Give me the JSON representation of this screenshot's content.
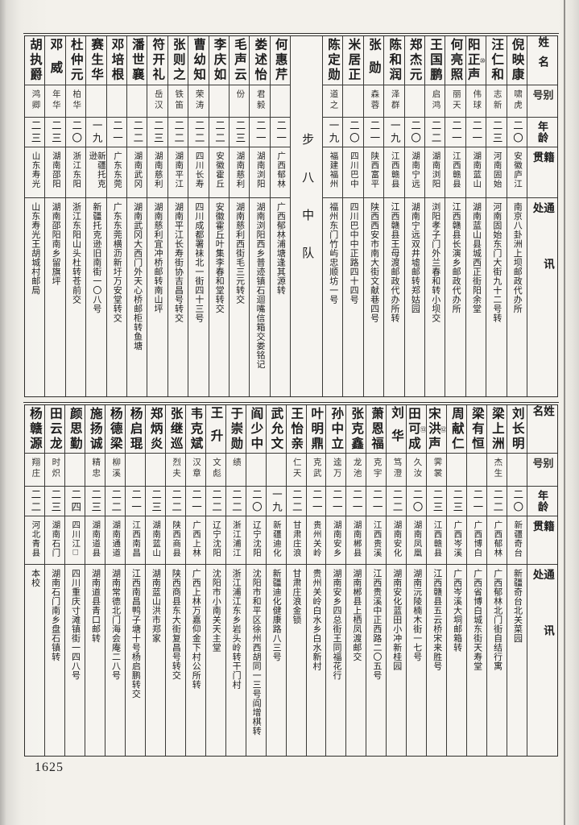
{
  "page": {
    "number": "1625"
  },
  "headers": {
    "name": "姓名",
    "alias": "别号",
    "age": "年龄",
    "native": "籍贯",
    "address": "通讯处"
  },
  "colors": {
    "paper": "#f3f1eb",
    "rule": "#2e2d2b",
    "ink": "#1c1c1c"
  },
  "tables": [
    {
      "separator": "步八中队",
      "separator_after": 10,
      "entries": [
        {
          "name": "倪映康",
          "note": "",
          "alias": "啸虎",
          "age": "二〇",
          "native": "安徽庐江",
          "address": "南京八卦洲上坝邮政代办所"
        },
        {
          "name": "汪仁和",
          "note": "",
          "alias": "志新",
          "age": "二三",
          "native": "河南固始",
          "address": "河南固始东门大街九十二号转"
        },
        {
          "name": "阳正声",
          "note": "⑩",
          "alias": "伟球",
          "age": "二一",
          "native": "湖南蓝山",
          "address": "湖南蓝山县城西正街阳余堂"
        },
        {
          "name": "何亮照",
          "note": "",
          "alias": "丽天",
          "age": "二一",
          "native": "江西赣县",
          "address": "江西赣县长演乡邮政代办所"
        },
        {
          "name": "王国鹏",
          "note": "",
          "alias": "启鸿",
          "age": "二二",
          "native": "湖南浏阳",
          "address": "浏阳孝子门外兰春和转小坝交"
        },
        {
          "name": "郑杰元",
          "note": "",
          "alias": "",
          "age": "二〇",
          "native": "湖南宁远",
          "address": "湖南宁远双井墟邮转郑姑园"
        },
        {
          "name": "陈和润",
          "note": "",
          "alias": "泽群",
          "age": "一九",
          "native": "江西赣县",
          "address": "江西赣县王母渡邮政代办所转"
        },
        {
          "name": "张勋",
          "note": "",
          "alias": "森蓉",
          "age": "二一",
          "native": "陕西富平",
          "address": "陕西西安市南大街文献巷四号"
        },
        {
          "name": "米居正",
          "note": "",
          "alias": "",
          "age": "二〇",
          "native": "四川巴中",
          "address": "四川巴中中正路四十四号"
        },
        {
          "name": "陈定勋",
          "note": "",
          "alias": "道之",
          "age": "一九",
          "native": "福建福州",
          "address": "福州东门竹屿忠顺坊一号"
        },
        {
          "name": "何惠芹",
          "note": "",
          "alias": "",
          "age": "二一",
          "native": "广西郁林",
          "address": "广西郁林浦塘逢其源转"
        },
        {
          "name": "娄述怡",
          "note": "",
          "alias": "君毅",
          "age": "二一",
          "native": "湖南浏阳",
          "address": "湖南浏阳西乡普迹镇石迴嘴信箱交娄铭记"
        },
        {
          "name": "毛声云",
          "note": "",
          "alias": "份",
          "age": "二三",
          "native": "湖南慈利",
          "address": "湖南慈利西街毛三元转交"
        },
        {
          "name": "李庆如",
          "note": "",
          "alias": "",
          "age": "二二",
          "native": "安徽霍丘",
          "address": "安徽霍丘叶集李春和堂转交"
        },
        {
          "name": "曹幼知",
          "note": "",
          "alias": "荣涛",
          "age": "二二",
          "native": "四川长寿",
          "address": "四川成都署袜北一街四十三号"
        },
        {
          "name": "张则之",
          "note": "",
          "alias": "铁笛",
          "age": "二二",
          "native": "湖南平江",
          "address": "湖南平江长寿街协吉昌号转交"
        },
        {
          "name": "符开礼",
          "note": "",
          "alias": "岳汉",
          "age": "二三",
          "native": "湖南慈利",
          "address": "湖南慈利宜冲桥邮转南山坪"
        },
        {
          "name": "潘世襄",
          "note": "",
          "alias": "",
          "age": "二二",
          "native": "湖南武冈",
          "address": "湖南武冈大西门外天心桥邮柜转鱼塘"
        },
        {
          "name": "邓培根",
          "note": "",
          "alias": "",
          "age": "二一",
          "native": "广东东莞",
          "address": "广东东莞横沥新圩万安堂转交"
        },
        {
          "name": "赛生华",
          "note": "",
          "alias": "",
          "age": "一九",
          "native": "新疆托克逊",
          "address": "新疆托克逊旧南街一〇八号"
        },
        {
          "name": "杜仲元",
          "note": "",
          "alias": "柏华",
          "age": "二〇",
          "native": "浙江东阳",
          "address": "浙江东阳山头杜转苍前交"
        },
        {
          "name": "邓威",
          "note": "",
          "alias": "年华",
          "age": "二三",
          "native": "湖南邵阳",
          "address": "湖南邵阳南乡留旗坪"
        },
        {
          "name": "胡执爵",
          "note": "",
          "alias": "鸿卿",
          "age": "二三",
          "native": "山东寿光",
          "address": "山东寿光王胡城村邮局"
        }
      ]
    },
    {
      "separator": "",
      "separator_after": -1,
      "entries": [
        {
          "name": "刘长明",
          "note": "",
          "alias": "",
          "age": "二〇",
          "native": "新疆奇台",
          "address": "新疆奇台北关菜园"
        },
        {
          "name": "梁上洲",
          "note": "",
          "alias": "杰生",
          "age": "二二",
          "native": "广西郁林",
          "address": "广西郁林北门街自结行寓"
        },
        {
          "name": "梁有恒",
          "note": "",
          "alias": "",
          "age": "二一",
          "native": "广西博白",
          "address": "广西省博白城东街天寿堂"
        },
        {
          "name": "周献仁",
          "note": "",
          "alias": "",
          "age": "二三",
          "native": "广西岑溪",
          "address": "广西岑溪大垌邮箱转"
        },
        {
          "name": "宋洪声",
          "note": "⑫",
          "alias": "霁裳",
          "age": "二三",
          "native": "江西赣县",
          "address": "江西赣县五云桥宋来胜号"
        },
        {
          "name": "田可成",
          "note": "⑬",
          "alias": "久汝",
          "age": "二〇",
          "native": "湖南凤凰",
          "address": "湖南沅陵楠木街一七号"
        },
        {
          "name": "刘华",
          "note": "",
          "alias": "笃澄",
          "age": "二二",
          "native": "湖南安化",
          "address": "湖南安化蓝田小冲新桂园"
        },
        {
          "name": "萧恩福",
          "note": "",
          "alias": "克宇",
          "age": "二一",
          "native": "江西贵溪",
          "address": "江西贵溪中正西路二〇五号"
        },
        {
          "name": "张克鑫",
          "note": "",
          "alias": "龙池",
          "age": "二一",
          "native": "湖南郴县",
          "address": "湖南郴县上栖凤渡邮交"
        },
        {
          "name": "孙中立",
          "note": "",
          "alias": "逵万",
          "age": "二一",
          "native": "湖南安乡",
          "address": "湖南安乡四总街王同福花行"
        },
        {
          "name": "叶明鼎",
          "note": "",
          "alias": "克武",
          "age": "二一",
          "native": "贵州关岭",
          "address": "贵州关岭白水乡白水新村"
        },
        {
          "name": "王怡亲",
          "note": "",
          "alias": "仁天",
          "age": "二二",
          "native": "甘肃庄浪",
          "address": "甘肃庄浪金锁"
        },
        {
          "name": "武允文",
          "note": "",
          "alias": "",
          "age": "一九",
          "native": "新疆迪化",
          "address": "新疆迪化健康路八三号"
        },
        {
          "name": "阎少中",
          "note": "",
          "alias": "",
          "age": "二〇",
          "native": "辽宁沈阳",
          "address": "沈阳市和平区徐州西胡同一三号阎增棋转"
        },
        {
          "name": "于崇勋",
          "note": "",
          "alias": "绩",
          "age": "二二",
          "native": "浙江浦江",
          "address": "浙江浦江东乡岩头岭转干门村"
        },
        {
          "name": "王升",
          "note": "",
          "alias": "文彪",
          "age": "二二",
          "native": "辽宁沈阳",
          "address": "沈阳市小南关天主堂"
        },
        {
          "name": "韦克斌",
          "note": "",
          "alias": "汉章",
          "age": "二一",
          "native": "广西上林",
          "address": "广西上林万嘉仰金下村公所转"
        },
        {
          "name": "张继巡",
          "note": "",
          "alias": "烈夫",
          "age": "二二",
          "native": "陕西商县",
          "address": "陕西商县东大街复昌号转交"
        },
        {
          "name": "郑炳炎",
          "note": "",
          "alias": "",
          "age": "二三",
          "native": "湖南蓝山",
          "address": "湖南蓝山洪市郑家"
        },
        {
          "name": "杨启琨",
          "note": "",
          "alias": "",
          "age": "二一",
          "native": "江西南昌",
          "address": "江西南昌鸭子塘十号杨启鹏转交"
        },
        {
          "name": "杨德梁",
          "note": "",
          "alias": "柳溪",
          "age": "二二",
          "native": "湖南通道",
          "address": "湖南常德北门海会庵二八号"
        },
        {
          "name": "施扬诚",
          "note": "",
          "alias": "精忠",
          "age": "二三",
          "native": "湖南道县",
          "address": "湖南道县青口邮转"
        },
        {
          "name": "颜思勤",
          "note": "",
          "alias": "",
          "age": "二四",
          "native": "四川江□",
          "address": "四川重庆寸滩镇街一四八号"
        },
        {
          "name": "田云龙",
          "note": "",
          "alias": "时炽",
          "age": "二三",
          "native": "湖南石门",
          "address": "湖南石门南乡盘石镇转"
        },
        {
          "name": "杨赣源",
          "note": "",
          "alias": "翔庄",
          "age": "二二",
          "native": "河北青县",
          "address": "本校"
        }
      ]
    }
  ]
}
